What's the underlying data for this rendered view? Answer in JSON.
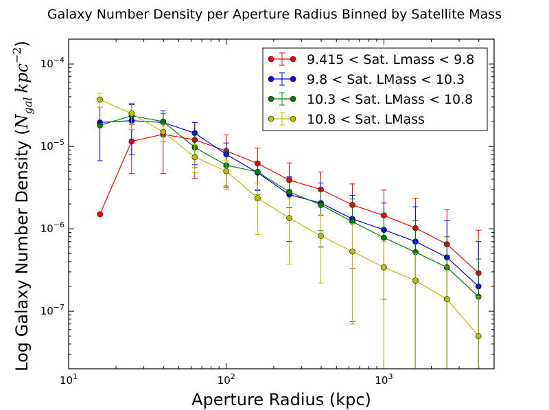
{
  "chart_data": {
    "type": "scatter",
    "title": "Galaxy Number Density per Aperture Radius Binned by Satellite Mass",
    "xlabel": "Aperture Radius (kpc)",
    "ylabel_text": "Log Galaxy Number Density (",
    "ylabel_math": "N",
    "ylabel_sub": "gal",
    "ylabel_unit": "kpc",
    "ylabel_exp": "−2",
    "ylabel_close": ")",
    "x_scale": "log",
    "y_scale": "log",
    "xlim": [
      10,
      5000
    ],
    "ylim": [
      2e-08,
      0.0002
    ],
    "x_ticks": [
      {
        "value": 10,
        "base": "10",
        "exp": "1"
      },
      {
        "value": 100,
        "base": "10",
        "exp": "2"
      },
      {
        "value": 1000,
        "base": "10",
        "exp": "3"
      }
    ],
    "y_ticks": [
      {
        "value": 1e-07,
        "base": "10",
        "exp": "−7"
      },
      {
        "value": 1e-06,
        "base": "10",
        "exp": "−6"
      },
      {
        "value": 1e-05,
        "base": "10",
        "exp": "−5"
      },
      {
        "value": 0.0001,
        "base": "10",
        "exp": "−4"
      }
    ],
    "legend_position": "top-right",
    "series": [
      {
        "name": "9.415 < Sat. Lmass < 9.8",
        "color": "#ff0000",
        "x": [
          15.8,
          25.1,
          39.8,
          63.1,
          100,
          158,
          251,
          398,
          631,
          1000,
          1585,
          2512,
          3981
        ],
        "y": [
          1.5e-06,
          1.15e-05,
          1.4e-05,
          1.2e-05,
          8.8e-06,
          6.2e-06,
          3.9e-06,
          3e-06,
          1.95e-06,
          1.45e-06,
          1.02e-06,
          6.5e-07,
          2.9e-07
        ],
        "yerr_low": [
          null,
          4.7e-06,
          4.7e-06,
          4.1e-06,
          3.3e-06,
          3e-06,
          1.8e-06,
          1.45e-06,
          3.3e-07,
          1.5e-08,
          1.5e-08,
          1.5e-08,
          1.5e-08
        ],
        "yerr_high": [
          null,
          1.85e-05,
          1.95e-05,
          1.95e-05,
          1.38e-05,
          9.5e-06,
          6.3e-06,
          4.9e-06,
          3.5e-06,
          2.95e-06,
          2.35e-06,
          1.7e-06,
          9.6e-07
        ]
      },
      {
        "name": "9.8 < Sat. LMass < 10.3",
        "color": "#0000ff",
        "x": [
          15.8,
          25.1,
          39.8,
          63.1,
          100,
          158,
          251,
          398,
          631,
          1000,
          1585,
          2512,
          3981
        ],
        "y": [
          1.95e-05,
          2.05e-05,
          1.95e-05,
          1.45e-05,
          8e-06,
          4.8e-06,
          2.6e-06,
          2.05e-06,
          1.32e-06,
          9.7e-07,
          7e-07,
          4.5e-07,
          2e-07
        ],
        "yerr_low": [
          6.7e-06,
          8e-06,
          1.15e-05,
          6e-06,
          3.2e-06,
          2.9e-06,
          7e-07,
          6e-07,
          7.5e-08,
          1.5e-08,
          1.5e-08,
          1.5e-08,
          1.5e-08
        ],
        "yerr_high": [
          3e-05,
          3.2e-05,
          2.7e-05,
          1.95e-05,
          1.1e-05,
          6.5e-06,
          4.3e-06,
          3.6e-06,
          2.55e-06,
          2.05e-06,
          1.85e-06,
          1.25e-06,
          7e-07
        ]
      },
      {
        "name": "10.3 < Sat. LMass < 10.8",
        "color": "#008000",
        "x": [
          15.8,
          25.1,
          39.8,
          63.1,
          100,
          158,
          251,
          398,
          631,
          1000,
          1585,
          2512,
          3981
        ],
        "y": [
          1.8e-05,
          2.35e-05,
          2e-05,
          9.7e-06,
          5.9e-06,
          4.9e-06,
          2.8e-06,
          1.95e-06,
          1.22e-06,
          7.8e-07,
          5.2e-07,
          3.4e-07,
          1.5e-07
        ],
        "yerr_low": [
          null,
          1.6e-05,
          1.3e-05,
          5.5e-06,
          3e-06,
          2.6e-06,
          1.4e-06,
          9.5e-07,
          7e-08,
          1.4e-07,
          1.5e-08,
          1.5e-08,
          1.5e-08
        ],
        "yerr_high": [
          null,
          3.3e-05,
          2.5e-05,
          1.45e-05,
          8.8e-06,
          6.5e-06,
          4.2e-06,
          3e-06,
          2.3e-06,
          1.55e-06,
          1.25e-06,
          8e-07,
          4.3e-07
        ]
      },
      {
        "name": "10.8 < Sat. LMass",
        "color": "#bfbf00",
        "x": [
          15.8,
          25.1,
          39.8,
          63.1,
          100,
          158,
          251,
          398,
          631,
          1000,
          1585,
          2512,
          3981
        ],
        "y": [
          3.7e-05,
          2.5e-05,
          1.5e-05,
          7.4e-06,
          5e-06,
          2.35e-06,
          1.35e-06,
          8.2e-07,
          5.3e-07,
          3.4e-07,
          2.35e-07,
          1.4e-07,
          5e-08
        ],
        "yerr_low": [
          3e-05,
          1.6e-05,
          1.15e-05,
          4.8e-06,
          3e-06,
          8.5e-07,
          3.7e-07,
          2.2e-07,
          7e-08,
          1.5e-08,
          1.5e-08,
          1.5e-08,
          1.5e-08
        ],
        "yerr_high": [
          4.4e-05,
          3.35e-05,
          1.85e-05,
          1.05e-05,
          6.8e-06,
          3.6e-06,
          2.3e-06,
          1.5e-06,
          1.15e-06,
          7e-07,
          5e-07,
          3.5e-07,
          1.5e-07
        ]
      }
    ]
  }
}
